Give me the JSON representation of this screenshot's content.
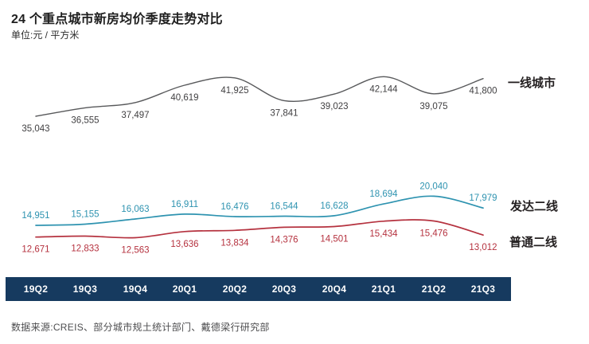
{
  "page": {
    "title": "24 个重点城市新房均价季度走势对比",
    "subtitle": "单位:元 / 平方米",
    "source": "数据来源:CREIS、部分城市规土统计部门、戴德梁行研究部"
  },
  "chart_data": {
    "type": "line",
    "title": "24 个重点城市新房均价季度走势对比",
    "ylabel": "元/平方米",
    "grid": false,
    "legend_position": "right",
    "categories": [
      "19Q2",
      "19Q3",
      "19Q4",
      "20Q1",
      "20Q2",
      "20Q3",
      "20Q4",
      "21Q1",
      "21Q2",
      "21Q3"
    ],
    "series": [
      {
        "name": "一线城市",
        "values": [
          35043,
          36555,
          37497,
          40619,
          41925,
          37841,
          39023,
          42144,
          39075,
          41800
        ],
        "color": "#58595B",
        "label_color": "#414042",
        "label_position": "below"
      },
      {
        "name": "发达二线",
        "values": [
          14951,
          15155,
          16063,
          16911,
          16476,
          16544,
          16628,
          18694,
          20040,
          17979
        ],
        "color": "#2E93B0",
        "label_color": "#2E93B0",
        "label_position": "above"
      },
      {
        "name": "普通二线",
        "values": [
          12671,
          12833,
          12563,
          13636,
          13834,
          14376,
          14501,
          15434,
          15476,
          13012
        ],
        "color": "#B5323F",
        "label_color": "#B5323F",
        "label_position": "below"
      }
    ],
    "x_axis_style": {
      "banner_color": "#163A5F",
      "text_color": "#FFFFFF"
    }
  }
}
